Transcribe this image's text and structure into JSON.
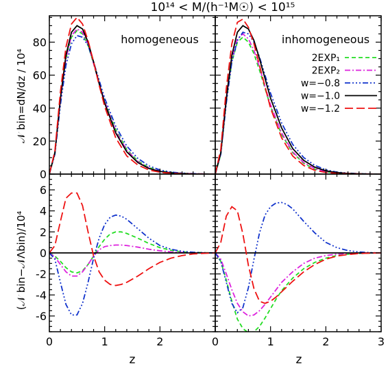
{
  "figure": {
    "title": "10¹⁴ < M/(h⁻¹M☉) < 10¹⁵",
    "xlabel": "z",
    "ylabel_top": "𝒩 bin=dN/dz / 10⁴",
    "ylabel_bottom": "(𝒩 bin−𝒩Λbin)/10⁴"
  },
  "legend": [
    {
      "label": "2EXP₁",
      "color": "#22dd22",
      "dash": "6,4"
    },
    {
      "label": "2EXP₂",
      "color": "#dd22dd",
      "dash": "8,3,2,3"
    },
    {
      "label": "w=−0.8",
      "color": "#1133cc",
      "dash": "8,3,2,3,2,3,2,3"
    },
    {
      "label": "w=−1.0",
      "color": "#000000",
      "dash": ""
    },
    {
      "label": "w=−1.2",
      "color": "#ee1111",
      "dash": "12,5"
    }
  ],
  "chart_data": [
    {
      "type": "line",
      "panel": "top-left",
      "annotation": "homogeneous",
      "xlim": [
        0,
        3
      ],
      "ylim": [
        0,
        96
      ],
      "xticks": [
        "0",
        "1",
        "2",
        "3"
      ],
      "yticks": [
        0,
        20,
        40,
        60,
        80
      ],
      "series": [
        {
          "name": "2EXP₁",
          "x": [
            0,
            0.1,
            0.2,
            0.3,
            0.4,
            0.5,
            0.6,
            0.7,
            0.8,
            0.9,
            1.0,
            1.2,
            1.4,
            1.6,
            1.8,
            2.0,
            2.2,
            2.4,
            2.6,
            2.8,
            3.0
          ],
          "y": [
            0,
            13,
            45,
            70,
            83,
            87,
            85,
            78,
            67,
            55,
            44,
            27,
            15,
            8,
            4,
            2,
            1,
            0.5,
            0.2,
            0.1,
            0
          ]
        },
        {
          "name": "2EXP₂",
          "x": [
            0,
            0.1,
            0.2,
            0.3,
            0.4,
            0.5,
            0.6,
            0.7,
            0.8,
            0.9,
            1.0,
            1.2,
            1.4,
            1.6,
            1.8,
            2.0,
            2.2,
            2.4,
            2.6,
            2.8,
            3.0
          ],
          "y": [
            0,
            13,
            45,
            70,
            84,
            88,
            86,
            79,
            67,
            55,
            44,
            26,
            14.5,
            7.5,
            3.7,
            1.8,
            0.8,
            0.4,
            0.2,
            0.1,
            0
          ]
        },
        {
          "name": "w=−0.8",
          "x": [
            0,
            0.1,
            0.2,
            0.3,
            0.4,
            0.5,
            0.6,
            0.7,
            0.8,
            0.9,
            1.0,
            1.2,
            1.4,
            1.6,
            1.8,
            2.0,
            2.2,
            2.4,
            2.6,
            2.8,
            3.0
          ],
          "y": [
            0,
            12,
            42,
            66,
            79,
            84,
            83,
            78,
            68,
            57,
            46,
            29,
            17,
            9.5,
            5,
            2.5,
            1.2,
            0.6,
            0.3,
            0.1,
            0
          ]
        },
        {
          "name": "w=−1.0",
          "x": [
            0,
            0.1,
            0.2,
            0.3,
            0.4,
            0.5,
            0.6,
            0.7,
            0.8,
            0.9,
            1.0,
            1.2,
            1.4,
            1.6,
            1.8,
            2.0,
            2.2,
            2.4,
            2.6,
            2.8,
            3.0
          ],
          "y": [
            0,
            13,
            46,
            72,
            86,
            90,
            88,
            80,
            68,
            55,
            43,
            25,
            13.5,
            7,
            3.4,
            1.6,
            0.7,
            0.3,
            0.1,
            0.05,
            0
          ]
        },
        {
          "name": "w=−1.2",
          "x": [
            0,
            0.1,
            0.2,
            0.3,
            0.4,
            0.5,
            0.6,
            0.7,
            0.8,
            0.9,
            1.0,
            1.2,
            1.4,
            1.6,
            1.8,
            2.0,
            2.2,
            2.4,
            2.6,
            2.8,
            3.0
          ],
          "y": [
            0,
            14,
            50,
            77,
            91,
            95,
            91,
            81,
            68,
            54,
            41,
            22,
            11,
            5.5,
            2.5,
            1.1,
            0.5,
            0.2,
            0.1,
            0.05,
            0
          ]
        }
      ]
    },
    {
      "type": "line",
      "panel": "top-right",
      "annotation": "inhomogeneous",
      "xlim": [
        0,
        3
      ],
      "ylim": [
        0,
        96
      ],
      "xticks": [
        "0",
        "1",
        "2",
        "3"
      ],
      "yticks": [
        0,
        20,
        40,
        60,
        80
      ],
      "series": [
        {
          "name": "2EXP₁",
          "x": [
            0,
            0.1,
            0.2,
            0.3,
            0.4,
            0.5,
            0.6,
            0.7,
            0.8,
            0.9,
            1.0,
            1.2,
            1.4,
            1.6,
            1.8,
            2.0,
            2.2,
            2.4,
            2.6,
            2.8,
            3.0
          ],
          "y": [
            0,
            12,
            44,
            68,
            80,
            83,
            80,
            73,
            63,
            52,
            41,
            24,
            13,
            6.5,
            3,
            1.4,
            0.6,
            0.3,
            0.1,
            0.05,
            0
          ]
        },
        {
          "name": "2EXP₂",
          "x": [
            0,
            0.1,
            0.2,
            0.3,
            0.4,
            0.5,
            0.6,
            0.7,
            0.8,
            0.9,
            1.0,
            1.2,
            1.4,
            1.6,
            1.8,
            2.0,
            2.2,
            2.4,
            2.6,
            2.8,
            3.0
          ],
          "y": [
            0,
            12.5,
            45,
            70,
            82,
            85,
            82,
            75,
            65,
            53,
            42,
            25,
            13.5,
            7,
            3.3,
            1.5,
            0.7,
            0.3,
            0.1,
            0.05,
            0
          ]
        },
        {
          "name": "w=−0.8",
          "x": [
            0,
            0.1,
            0.2,
            0.3,
            0.4,
            0.5,
            0.6,
            0.7,
            0.8,
            0.9,
            1.0,
            1.2,
            1.4,
            1.6,
            1.8,
            2.0,
            2.2,
            2.4,
            2.6,
            2.8,
            3.0
          ],
          "y": [
            0,
            12,
            43,
            68,
            81,
            86,
            85,
            80,
            71,
            60,
            49,
            31,
            18,
            10,
            5.3,
            2.6,
            1.2,
            0.6,
            0.3,
            0.1,
            0
          ]
        },
        {
          "name": "w=−1.0",
          "x": [
            0,
            0.1,
            0.2,
            0.3,
            0.4,
            0.5,
            0.6,
            0.7,
            0.8,
            0.9,
            1.0,
            1.2,
            1.4,
            1.6,
            1.8,
            2.0,
            2.2,
            2.4,
            2.6,
            2.8,
            3.0
          ],
          "y": [
            0,
            13,
            46,
            72,
            86,
            90,
            88,
            81,
            70,
            58,
            46,
            28,
            15.5,
            8.3,
            4.2,
            2,
            0.9,
            0.4,
            0.2,
            0.05,
            0
          ]
        },
        {
          "name": "w=−1.2",
          "x": [
            0,
            0.1,
            0.2,
            0.3,
            0.4,
            0.5,
            0.6,
            0.7,
            0.8,
            0.9,
            1.0,
            1.2,
            1.4,
            1.6,
            1.8,
            2.0,
            2.2,
            2.4,
            2.6,
            2.8,
            3.0
          ],
          "y": [
            0,
            15,
            52,
            79,
            92,
            94,
            89,
            79,
            66,
            53,
            40,
            22,
            11,
            5.2,
            2.3,
            1,
            0.4,
            0.2,
            0.1,
            0.05,
            0
          ]
        }
      ]
    },
    {
      "type": "line",
      "panel": "bottom-left",
      "xlim": [
        0,
        3
      ],
      "ylim": [
        -7.5,
        7.5
      ],
      "xticks": [
        "0",
        "1",
        "2",
        "3"
      ],
      "yticks": [
        -6,
        -4,
        -2,
        0,
        2,
        4,
        6
      ],
      "series": [
        {
          "name": "2EXP₁",
          "x": [
            0,
            0.1,
            0.2,
            0.3,
            0.4,
            0.5,
            0.6,
            0.7,
            0.8,
            0.9,
            1.0,
            1.1,
            1.2,
            1.3,
            1.4,
            1.6,
            1.8,
            2.0,
            2.2,
            2.4,
            2.6,
            2.8,
            3.0
          ],
          "y": [
            0,
            -0.3,
            -0.8,
            -1.4,
            -1.8,
            -1.9,
            -1.7,
            -1.1,
            -0.3,
            0.6,
            1.3,
            1.8,
            2.0,
            2.0,
            1.85,
            1.4,
            0.9,
            0.5,
            0.25,
            0.1,
            0.05,
            0.02,
            0
          ]
        },
        {
          "name": "2EXP₂",
          "x": [
            0,
            0.1,
            0.2,
            0.3,
            0.4,
            0.5,
            0.6,
            0.7,
            0.8,
            0.9,
            1.0,
            1.1,
            1.2,
            1.3,
            1.4,
            1.6,
            1.8,
            2.0,
            2.2,
            2.4,
            2.6,
            2.8,
            3.0
          ],
          "y": [
            0,
            -0.4,
            -1.1,
            -1.8,
            -2.2,
            -2.2,
            -1.8,
            -1.1,
            -0.3,
            0.3,
            0.6,
            0.7,
            0.75,
            0.75,
            0.7,
            0.55,
            0.35,
            0.2,
            0.1,
            0.05,
            0.02,
            0.01,
            0
          ]
        },
        {
          "name": "w=−0.8",
          "x": [
            0,
            0.1,
            0.2,
            0.3,
            0.4,
            0.5,
            0.6,
            0.7,
            0.8,
            0.9,
            1.0,
            1.1,
            1.2,
            1.3,
            1.4,
            1.6,
            1.8,
            2.0,
            2.2,
            2.4,
            2.6,
            2.8,
            3.0
          ],
          "y": [
            0,
            -0.6,
            -2.8,
            -4.9,
            -5.9,
            -5.9,
            -4.8,
            -2.8,
            -0.5,
            1.4,
            2.7,
            3.4,
            3.6,
            3.5,
            3.2,
            2.3,
            1.4,
            0.7,
            0.35,
            0.15,
            0.06,
            0.02,
            0
          ]
        },
        {
          "name": "w=−1.0",
          "x": [
            0,
            3
          ],
          "y": [
            0,
            0
          ]
        },
        {
          "name": "w=−1.2",
          "x": [
            0,
            0.1,
            0.2,
            0.3,
            0.4,
            0.5,
            0.6,
            0.7,
            0.8,
            0.9,
            1.0,
            1.1,
            1.2,
            1.3,
            1.4,
            1.6,
            1.8,
            2.0,
            2.2,
            2.4,
            2.6,
            2.8,
            3.0
          ],
          "y": [
            0,
            0.7,
            3.0,
            5.2,
            5.7,
            5.7,
            4.5,
            2.0,
            -0.3,
            -1.8,
            -2.6,
            -3.0,
            -3.1,
            -3.0,
            -2.8,
            -2.2,
            -1.5,
            -0.9,
            -0.5,
            -0.25,
            -0.1,
            -0.04,
            0
          ]
        }
      ]
    },
    {
      "type": "line",
      "panel": "bottom-right",
      "xlim": [
        0,
        3
      ],
      "ylim": [
        -7.5,
        7.5
      ],
      "xticks": [
        "0",
        "1",
        "2",
        "3"
      ],
      "yticks": [
        -6,
        -4,
        -2,
        0,
        2,
        4,
        6
      ],
      "series": [
        {
          "name": "2EXP₁",
          "x": [
            0,
            0.1,
            0.2,
            0.3,
            0.4,
            0.5,
            0.6,
            0.7,
            0.8,
            0.9,
            1.0,
            1.1,
            1.2,
            1.4,
            1.6,
            1.8,
            2.0,
            2.2,
            2.4,
            2.6,
            2.8,
            3.0
          ],
          "y": [
            0,
            -0.8,
            -2.6,
            -4.6,
            -6.3,
            -7.2,
            -7.6,
            -7.5,
            -7.0,
            -6.2,
            -5.3,
            -4.4,
            -3.6,
            -2.4,
            -1.5,
            -0.9,
            -0.5,
            -0.25,
            -0.12,
            -0.06,
            -0.02,
            0
          ]
        },
        {
          "name": "2EXP₂",
          "x": [
            0,
            0.1,
            0.2,
            0.3,
            0.4,
            0.5,
            0.6,
            0.7,
            0.8,
            0.9,
            1.0,
            1.1,
            1.2,
            1.4,
            1.6,
            1.8,
            2.0,
            2.2,
            2.4,
            2.6,
            2.8,
            3.0
          ],
          "y": [
            0,
            -0.6,
            -2.0,
            -3.5,
            -4.8,
            -5.6,
            -6.0,
            -5.9,
            -5.5,
            -4.9,
            -4.2,
            -3.5,
            -2.8,
            -1.8,
            -1.0,
            -0.5,
            -0.25,
            -0.12,
            -0.06,
            -0.03,
            -0.01,
            0
          ]
        },
        {
          "name": "w=−0.8",
          "x": [
            0,
            0.1,
            0.2,
            0.3,
            0.4,
            0.5,
            0.6,
            0.7,
            0.8,
            0.9,
            1.0,
            1.1,
            1.2,
            1.3,
            1.4,
            1.6,
            1.8,
            2.0,
            2.2,
            2.4,
            2.6,
            2.8,
            3.0
          ],
          "y": [
            0,
            -0.8,
            -2.8,
            -4.8,
            -5.7,
            -5.2,
            -3.3,
            -0.6,
            1.9,
            3.6,
            4.4,
            4.75,
            4.8,
            4.6,
            4.2,
            3.0,
            1.9,
            1.0,
            0.5,
            0.22,
            0.09,
            0.03,
            0
          ]
        },
        {
          "name": "w=−1.0",
          "x": [
            0,
            3
          ],
          "y": [
            0,
            0
          ]
        },
        {
          "name": "w=−1.2",
          "x": [
            0,
            0.1,
            0.2,
            0.3,
            0.4,
            0.5,
            0.6,
            0.7,
            0.8,
            0.9,
            1.0,
            1.1,
            1.2,
            1.4,
            1.6,
            1.8,
            2.0,
            2.2,
            2.4,
            2.6,
            2.8,
            3.0
          ],
          "y": [
            0,
            1.0,
            3.5,
            4.4,
            4.0,
            1.8,
            -1.2,
            -3.4,
            -4.6,
            -4.8,
            -4.6,
            -4.2,
            -3.7,
            -2.7,
            -1.8,
            -1.1,
            -0.6,
            -0.3,
            -0.15,
            -0.06,
            -0.02,
            0
          ]
        }
      ]
    }
  ]
}
